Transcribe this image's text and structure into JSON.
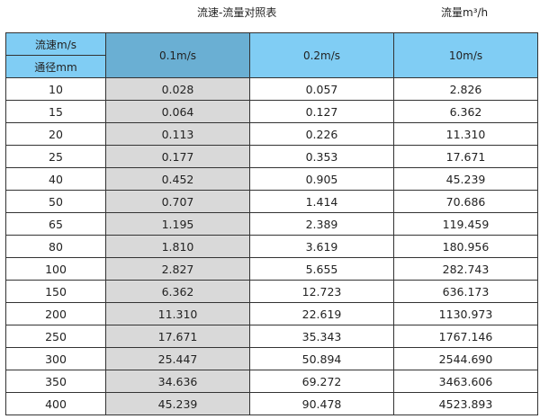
{
  "title": "流速-流量对照表",
  "unit_label": "流量m³/h",
  "header": {
    "velocity_label": "流速m/s",
    "diameter_label": "通径mm",
    "columns": [
      "0.1m/s",
      "0.2m/s",
      "10m/s"
    ]
  },
  "colors": {
    "header": "#80cdf4",
    "highlight_header": "#6aafd3",
    "highlight_column": "#d9d9d9"
  },
  "rows": [
    [
      "10",
      "0.028",
      "0.057",
      "2.826"
    ],
    [
      "15",
      "0.064",
      "0.127",
      "6.362"
    ],
    [
      "20",
      "0.113",
      "0.226",
      "11.310"
    ],
    [
      "25",
      "0.177",
      "0.353",
      "17.671"
    ],
    [
      "40",
      "0.452",
      "0.905",
      "45.239"
    ],
    [
      "50",
      "0.707",
      "1.414",
      "70.686"
    ],
    [
      "65",
      "1.195",
      "2.389",
      "119.459"
    ],
    [
      "80",
      "1.810",
      "3.619",
      "180.956"
    ],
    [
      "100",
      "2.827",
      "5.655",
      "282.743"
    ],
    [
      "150",
      "6.362",
      "12.723",
      "636.173"
    ],
    [
      "200",
      "11.310",
      "22.619",
      "1130.973"
    ],
    [
      "250",
      "17.671",
      "35.343",
      "1767.146"
    ],
    [
      "300",
      "25.447",
      "50.894",
      "2544.690"
    ],
    [
      "350",
      "34.636",
      "69.272",
      "3463.606"
    ],
    [
      "400",
      "45.239",
      "90.478",
      "4523.893"
    ]
  ]
}
